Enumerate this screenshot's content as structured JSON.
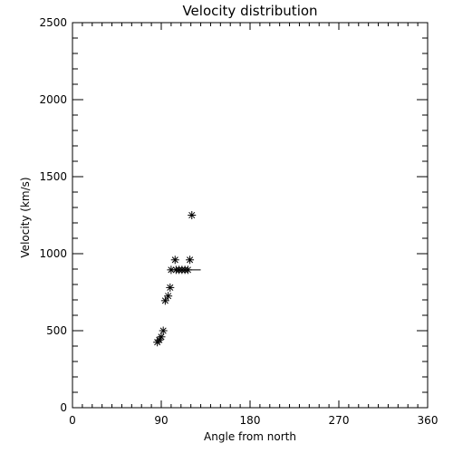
{
  "chart_data": {
    "type": "scatter",
    "title": "Velocity distribution",
    "xlabel": "Angle from north",
    "ylabel": "Velocity (km/s)",
    "xlim": [
      0,
      360
    ],
    "ylim": [
      0,
      2500
    ],
    "xticks": [
      0,
      90,
      180,
      270,
      360
    ],
    "yticks": [
      0,
      500,
      1000,
      1500,
      2000,
      2500
    ],
    "x_minor_step": 10,
    "y_minor_step": 100,
    "grid": false,
    "marker": "asterisk",
    "color": "#000000",
    "points": [
      {
        "x": 86,
        "y": 425
      },
      {
        "x": 88,
        "y": 440
      },
      {
        "x": 90,
        "y": 460
      },
      {
        "x": 92,
        "y": 500
      },
      {
        "x": 94,
        "y": 695
      },
      {
        "x": 97,
        "y": 725
      },
      {
        "x": 99,
        "y": 780
      },
      {
        "x": 100,
        "y": 895
      },
      {
        "x": 104,
        "y": 960
      },
      {
        "x": 105,
        "y": 895
      },
      {
        "x": 108,
        "y": 895
      },
      {
        "x": 111,
        "y": 895
      },
      {
        "x": 114,
        "y": 895
      },
      {
        "x": 117,
        "y": 895
      },
      {
        "x": 119,
        "y": 960
      },
      {
        "x": 121,
        "y": 1250
      }
    ],
    "reference_line": {
      "y": 895,
      "x_start": 100,
      "x_end": 130
    }
  }
}
